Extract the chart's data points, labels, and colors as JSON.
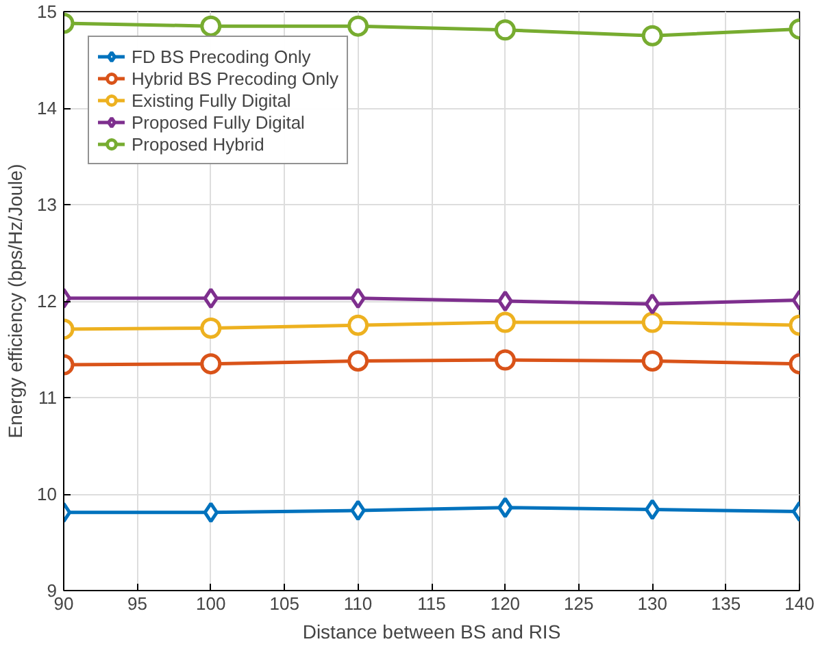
{
  "chart_data": {
    "type": "line",
    "xlabel": "Distance between BS and RIS",
    "ylabel": "Energy efficiency (bps/Hz/Joule)",
    "x": [
      90,
      100,
      110,
      120,
      130,
      140
    ],
    "series": [
      {
        "name": "FD BS Precoding Only",
        "color": "#0072bd",
        "marker": "diamond",
        "values": [
          9.81,
          9.81,
          9.83,
          9.86,
          9.84,
          9.82
        ]
      },
      {
        "name": "Hybrid BS Precoding Only",
        "color": "#d95319",
        "marker": "circle",
        "values": [
          11.34,
          11.35,
          11.38,
          11.39,
          11.38,
          11.35
        ]
      },
      {
        "name": "Existing Fully Digital",
        "color": "#edb120",
        "marker": "circle",
        "values": [
          11.71,
          11.72,
          11.75,
          11.78,
          11.78,
          11.75
        ]
      },
      {
        "name": "Proposed Fully Digital",
        "color": "#7e2f8e",
        "marker": "diamond",
        "values": [
          12.03,
          12.03,
          12.03,
          12.0,
          11.97,
          12.01
        ]
      },
      {
        "name": "Proposed Hybrid",
        "color": "#77ac30",
        "marker": "circle",
        "values": [
          14.88,
          14.85,
          14.85,
          14.81,
          14.75,
          14.82
        ]
      }
    ],
    "xlim": [
      90,
      140
    ],
    "xticks": [
      90,
      95,
      100,
      105,
      110,
      115,
      120,
      125,
      130,
      135,
      140
    ],
    "ylim": [
      9,
      15
    ],
    "yticks": [
      9,
      10,
      11,
      12,
      13,
      14,
      15
    ],
    "grid": true,
    "legend": "top left"
  }
}
